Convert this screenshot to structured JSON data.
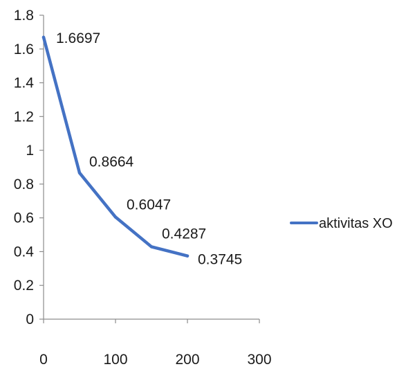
{
  "chart_data": {
    "type": "line",
    "title": "",
    "xlabel": "",
    "ylabel": "",
    "xlim": [
      0,
      300
    ],
    "ylim": [
      0,
      1.8
    ],
    "x_ticks": [
      "0",
      "100",
      "200",
      "300"
    ],
    "y_ticks": [
      "0",
      "0.2",
      "0.4",
      "0.6",
      "0.8",
      "1",
      "1.2",
      "1.4",
      "1.6",
      "1.8"
    ],
    "grid": false,
    "legend_position": "right",
    "series": [
      {
        "name": "aktivitas XO",
        "color": "#4472c4",
        "x": [
          0,
          50,
          100,
          150,
          200
        ],
        "y": [
          1.6697,
          0.8664,
          0.6047,
          0.4287,
          0.3745
        ],
        "labels": [
          "1.6697",
          "0.8664",
          "0.6047",
          "0.4287",
          "0.3745"
        ]
      }
    ]
  }
}
